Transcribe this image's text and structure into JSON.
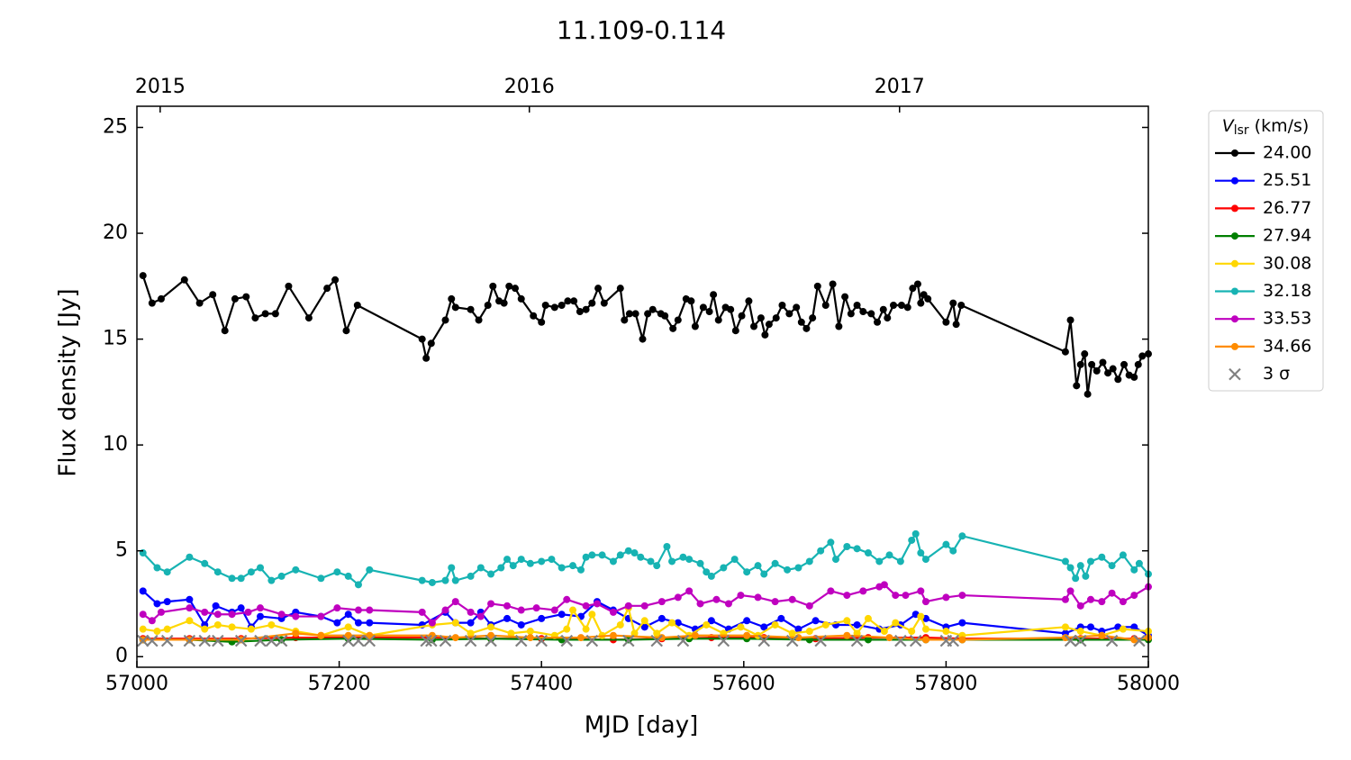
{
  "chart_data": {
    "type": "line",
    "title": "11.109-0.114",
    "xlabel": "MJD [day]",
    "ylabel": "Flux density [Jy]",
    "xlim": [
      57000,
      58000
    ],
    "xticks": [
      57000,
      57200,
      57400,
      57600,
      57800,
      58000
    ],
    "ylim": [
      -0.5,
      26
    ],
    "yticks": [
      0,
      5,
      10,
      15,
      20,
      25
    ],
    "x2ticks": [
      {
        "value": 57023,
        "label": "2015"
      },
      {
        "value": 57388,
        "label": "2016"
      },
      {
        "value": 57754,
        "label": "2017"
      }
    ],
    "legend_title": {
      "symbol": "V",
      "subscript": "lsr",
      "unit": "(km/s)"
    },
    "legend": "outside-upper-right",
    "series": [
      {
        "name": "24.00",
        "color": "#000000",
        "marker": "o",
        "x": [
          57006,
          57015,
          57024,
          57047,
          57062,
          57075,
          57087,
          57097,
          57108,
          57117,
          57127,
          57137,
          57150,
          57170,
          57188,
          57196,
          57207,
          57218,
          57282,
          57286,
          57291,
          57305,
          57311,
          57315,
          57330,
          57338,
          57347,
          57352,
          57358,
          57363,
          57368,
          57374,
          57380,
          57392,
          57400,
          57404,
          57413,
          57420,
          57426,
          57432,
          57438,
          57444,
          57450,
          57456,
          57462,
          57478,
          57482,
          57487,
          57493,
          57500,
          57505,
          57510,
          57518,
          57522,
          57530,
          57535,
          57543,
          57548,
          57552,
          57560,
          57566,
          57570,
          57575,
          57582,
          57587,
          57592,
          57598,
          57605,
          57610,
          57617,
          57621,
          57625,
          57632,
          57638,
          57645,
          57652,
          57657,
          57662,
          57668,
          57673,
          57681,
          57688,
          57694,
          57700,
          57706,
          57712,
          57718,
          57726,
          57732,
          57738,
          57742,
          57748,
          57756,
          57762,
          57767,
          57772,
          57775,
          57778,
          57782,
          57800,
          57807,
          57810,
          57815,
          57918,
          57923,
          57929,
          57933,
          57937,
          57940,
          57944,
          57949,
          57955,
          57960,
          57965,
          57970,
          57976,
          57981,
          57986,
          57990,
          57994,
          58000
        ],
        "values": [
          18.0,
          16.7,
          16.9,
          17.8,
          16.7,
          17.1,
          15.4,
          16.9,
          17.0,
          16.0,
          16.2,
          16.2,
          17.5,
          16.0,
          17.4,
          17.8,
          15.4,
          16.6,
          15.0,
          14.1,
          14.8,
          15.9,
          16.9,
          16.5,
          16.4,
          15.9,
          16.6,
          17.5,
          16.8,
          16.7,
          17.5,
          17.4,
          16.9,
          16.1,
          15.8,
          16.6,
          16.5,
          16.6,
          16.8,
          16.8,
          16.3,
          16.4,
          16.7,
          17.4,
          16.7,
          17.4,
          15.9,
          16.2,
          16.2,
          15.0,
          16.2,
          16.4,
          16.2,
          16.1,
          15.5,
          15.9,
          16.9,
          16.8,
          15.6,
          16.5,
          16.3,
          17.1,
          15.9,
          16.5,
          16.4,
          15.4,
          16.1,
          16.8,
          15.6,
          16.0,
          15.2,
          15.7,
          16.0,
          16.6,
          16.2,
          16.5,
          15.8,
          15.5,
          16.0,
          17.5,
          16.6,
          17.6,
          15.6,
          17.0,
          16.2,
          16.6,
          16.3,
          16.2,
          15.8,
          16.4,
          16.0,
          16.6,
          16.6,
          16.5,
          17.4,
          17.6,
          16.7,
          17.1,
          16.9,
          15.8,
          16.7,
          15.7,
          16.6,
          14.4,
          15.9,
          12.8,
          13.8,
          14.3,
          12.4,
          13.8,
          13.5,
          13.9,
          13.4,
          13.6,
          13.1,
          13.8,
          13.3,
          13.2,
          13.8,
          14.2,
          14.3
        ]
      },
      {
        "name": "25.51",
        "color": "#0000ff",
        "marker": "o",
        "x": [
          57006,
          57020,
          57030,
          57052,
          57067,
          57078,
          57094,
          57103,
          57113,
          57122,
          57143,
          57157,
          57182,
          57198,
          57209,
          57219,
          57230,
          57282,
          57305,
          57315,
          57330,
          57340,
          57350,
          57366,
          57380,
          57400,
          57420,
          57439,
          57455,
          57471,
          57486,
          57502,
          57519,
          57535,
          57552,
          57568,
          57585,
          57603,
          57620,
          57637,
          57654,
          57671,
          57691,
          57712,
          57734,
          57755,
          57770,
          57780,
          57800,
          57816,
          57918,
          57933,
          57943,
          57954,
          57970,
          57986,
          58000
        ],
        "values": [
          3.1,
          2.5,
          2.6,
          2.7,
          1.5,
          2.4,
          2.1,
          2.3,
          1.4,
          1.9,
          1.8,
          2.1,
          1.9,
          1.6,
          2.0,
          1.6,
          1.6,
          1.5,
          2.1,
          1.6,
          1.6,
          2.1,
          1.5,
          1.8,
          1.5,
          1.8,
          2.0,
          1.9,
          2.6,
          2.2,
          1.8,
          1.4,
          1.8,
          1.6,
          1.3,
          1.7,
          1.3,
          1.7,
          1.4,
          1.8,
          1.3,
          1.7,
          1.5,
          1.5,
          1.3,
          1.5,
          2.0,
          1.8,
          1.4,
          1.6,
          1.1,
          1.4,
          1.4,
          1.2,
          1.4,
          1.4,
          1.0
        ]
      },
      {
        "name": "26.77",
        "color": "#ff0000",
        "marker": "o",
        "x": [
          57006,
          57052,
          57103,
          57157,
          57230,
          57292,
          57350,
          57400,
          57471,
          57519,
          57568,
          57620,
          57671,
          57723,
          57780,
          57816,
          57933,
          57986,
          58000
        ],
        "values": [
          0.85,
          0.85,
          0.85,
          0.9,
          0.9,
          0.9,
          0.85,
          0.85,
          0.8,
          0.85,
          0.9,
          0.9,
          0.85,
          0.9,
          0.9,
          0.85,
          0.85,
          0.85,
          0.85
        ]
      },
      {
        "name": "27.94",
        "color": "#007f00",
        "marker": "o",
        "x": [
          57006,
          57052,
          57094,
          57143,
          57209,
          57292,
          57350,
          57420,
          57486,
          57546,
          57603,
          57665,
          57723,
          57780,
          57816,
          57933,
          58000
        ],
        "values": [
          0.8,
          0.8,
          0.7,
          0.8,
          0.85,
          0.8,
          0.85,
          0.8,
          0.8,
          0.85,
          0.85,
          0.8,
          0.8,
          0.8,
          0.8,
          0.8,
          0.8
        ]
      },
      {
        "name": "30.08",
        "color": "#ffd700",
        "marker": "o",
        "x": [
          57006,
          57020,
          57030,
          57052,
          57067,
          57080,
          57094,
          57113,
          57133,
          57157,
          57182,
          57209,
          57230,
          57292,
          57315,
          57330,
          57350,
          57370,
          57389,
          57413,
          57425,
          57431,
          57444,
          57450,
          57460,
          57478,
          57486,
          57492,
          57502,
          57514,
          57529,
          57546,
          57563,
          57580,
          57597,
          57614,
          57631,
          57648,
          57665,
          57681,
          57702,
          57712,
          57723,
          57739,
          57750,
          57766,
          57775,
          57780,
          57800,
          57816,
          57918,
          57933,
          57954,
          57975,
          58000
        ],
        "values": [
          1.3,
          1.2,
          1.3,
          1.7,
          1.3,
          1.5,
          1.4,
          1.3,
          1.5,
          1.2,
          1.0,
          1.4,
          1.0,
          1.5,
          1.6,
          1.1,
          1.4,
          1.1,
          1.2,
          1.0,
          1.3,
          2.2,
          1.3,
          2.0,
          1.0,
          1.5,
          2.3,
          1.1,
          1.7,
          1.1,
          1.6,
          1.0,
          1.5,
          1.1,
          1.4,
          1.0,
          1.5,
          1.1,
          1.2,
          1.5,
          1.7,
          1.1,
          1.8,
          1.2,
          1.6,
          1.2,
          1.9,
          1.3,
          1.2,
          1.0,
          1.4,
          1.2,
          1.0,
          1.3,
          1.2
        ]
      },
      {
        "name": "32.18",
        "color": "#17b3b3",
        "marker": "o",
        "x": [
          57006,
          57020,
          57030,
          57052,
          57067,
          57080,
          57094,
          57103,
          57113,
          57122,
          57133,
          57143,
          57157,
          57182,
          57198,
          57209,
          57219,
          57230,
          57282,
          57292,
          57305,
          57311,
          57315,
          57330,
          57340,
          57350,
          57360,
          57366,
          57372,
          57380,
          57389,
          57400,
          57410,
          57420,
          57431,
          57439,
          57444,
          57450,
          57460,
          57471,
          57478,
          57486,
          57492,
          57498,
          57508,
          57514,
          57524,
          57529,
          57540,
          57546,
          57557,
          57563,
          57568,
          57580,
          57591,
          57603,
          57614,
          57620,
          57631,
          57643,
          57654,
          57665,
          57676,
          57686,
          57691,
          57702,
          57712,
          57723,
          57734,
          57744,
          57755,
          57766,
          57770,
          57775,
          57780,
          57800,
          57807,
          57816,
          57918,
          57923,
          57928,
          57933,
          57938,
          57943,
          57954,
          57964,
          57975,
          57986,
          57991,
          58000
        ],
        "values": [
          4.9,
          4.2,
          4.0,
          4.7,
          4.4,
          4.0,
          3.7,
          3.7,
          4.0,
          4.2,
          3.6,
          3.8,
          4.1,
          3.7,
          4.0,
          3.8,
          3.4,
          4.1,
          3.6,
          3.5,
          3.6,
          4.2,
          3.6,
          3.8,
          4.2,
          3.9,
          4.2,
          4.6,
          4.3,
          4.6,
          4.4,
          4.5,
          4.6,
          4.2,
          4.3,
          4.1,
          4.7,
          4.8,
          4.8,
          4.5,
          4.8,
          5.0,
          4.9,
          4.7,
          4.5,
          4.3,
          5.2,
          4.5,
          4.7,
          4.6,
          4.4,
          4.0,
          3.8,
          4.2,
          4.6,
          4.0,
          4.3,
          3.9,
          4.4,
          4.1,
          4.2,
          4.5,
          5.0,
          5.4,
          4.6,
          5.2,
          5.1,
          4.9,
          4.5,
          4.8,
          4.5,
          5.5,
          5.8,
          4.9,
          4.6,
          5.3,
          5.0,
          5.7,
          4.5,
          4.2,
          3.7,
          4.3,
          3.8,
          4.5,
          4.7,
          4.3,
          4.8,
          4.1,
          4.4,
          3.9
        ]
      },
      {
        "name": "33.53",
        "color": "#bf00bf",
        "marker": "o",
        "x": [
          57006,
          57015,
          57024,
          57052,
          57067,
          57080,
          57094,
          57110,
          57122,
          57143,
          57157,
          57182,
          57198,
          57219,
          57230,
          57282,
          57292,
          57305,
          57315,
          57330,
          57340,
          57350,
          57366,
          57380,
          57395,
          57413,
          57425,
          57444,
          57455,
          57471,
          57486,
          57502,
          57519,
          57535,
          57546,
          57557,
          57573,
          57585,
          57597,
          57614,
          57631,
          57648,
          57665,
          57686,
          57702,
          57718,
          57734,
          57739,
          57750,
          57760,
          57775,
          57780,
          57800,
          57816,
          57918,
          57923,
          57933,
          57943,
          57954,
          57964,
          57975,
          57986,
          58000
        ],
        "values": [
          2.0,
          1.7,
          2.1,
          2.3,
          2.1,
          2.0,
          2.0,
          2.1,
          2.3,
          2.0,
          1.9,
          1.9,
          2.3,
          2.2,
          2.2,
          2.1,
          1.6,
          2.2,
          2.6,
          2.1,
          1.9,
          2.5,
          2.4,
          2.2,
          2.3,
          2.2,
          2.7,
          2.4,
          2.5,
          2.1,
          2.4,
          2.4,
          2.6,
          2.8,
          3.1,
          2.5,
          2.7,
          2.5,
          2.9,
          2.8,
          2.6,
          2.7,
          2.4,
          3.1,
          2.9,
          3.1,
          3.3,
          3.4,
          2.9,
          2.9,
          3.1,
          2.6,
          2.8,
          2.9,
          2.7,
          3.1,
          2.4,
          2.7,
          2.6,
          3.0,
          2.6,
          2.9,
          3.3
        ]
      },
      {
        "name": "34.66",
        "color": "#ff8c00",
        "marker": "o",
        "x": [
          57006,
          57052,
          57103,
          57157,
          57182,
          57209,
          57230,
          57292,
          57315,
          57350,
          57389,
          57439,
          57471,
          57519,
          57552,
          57603,
          57654,
          57702,
          57744,
          57780,
          57816,
          57918,
          57954,
          57986,
          58000
        ],
        "values": [
          0.8,
          0.8,
          0.8,
          1.1,
          1.0,
          1.0,
          1.0,
          1.0,
          0.9,
          1.0,
          0.9,
          0.9,
          1.0,
          0.9,
          1.0,
          1.0,
          0.9,
          1.0,
          0.9,
          0.8,
          0.8,
          0.9,
          1.0,
          0.8,
          0.9
        ]
      },
      {
        "name": "3 σ",
        "color": "#808080",
        "marker": "x",
        "line": false,
        "x": [
          57006,
          57015,
          57030,
          57052,
          57067,
          57080,
          57103,
          57122,
          57133,
          57143,
          57209,
          57219,
          57230,
          57286,
          57291,
          57305,
          57330,
          57350,
          57380,
          57400,
          57425,
          57450,
          57486,
          57514,
          57540,
          57580,
          57620,
          57648,
          57676,
          57712,
          57755,
          57770,
          57800,
          57807,
          57923,
          57933,
          57964,
          57991
        ],
        "values": [
          0.75,
          0.75,
          0.75,
          0.75,
          0.75,
          0.75,
          0.75,
          0.75,
          0.75,
          0.75,
          0.75,
          0.75,
          0.75,
          0.75,
          0.75,
          0.75,
          0.75,
          0.75,
          0.75,
          0.75,
          0.75,
          0.75,
          0.75,
          0.75,
          0.75,
          0.75,
          0.75,
          0.75,
          0.75,
          0.75,
          0.75,
          0.75,
          0.75,
          0.75,
          0.75,
          0.75,
          0.75,
          0.75
        ]
      }
    ]
  }
}
